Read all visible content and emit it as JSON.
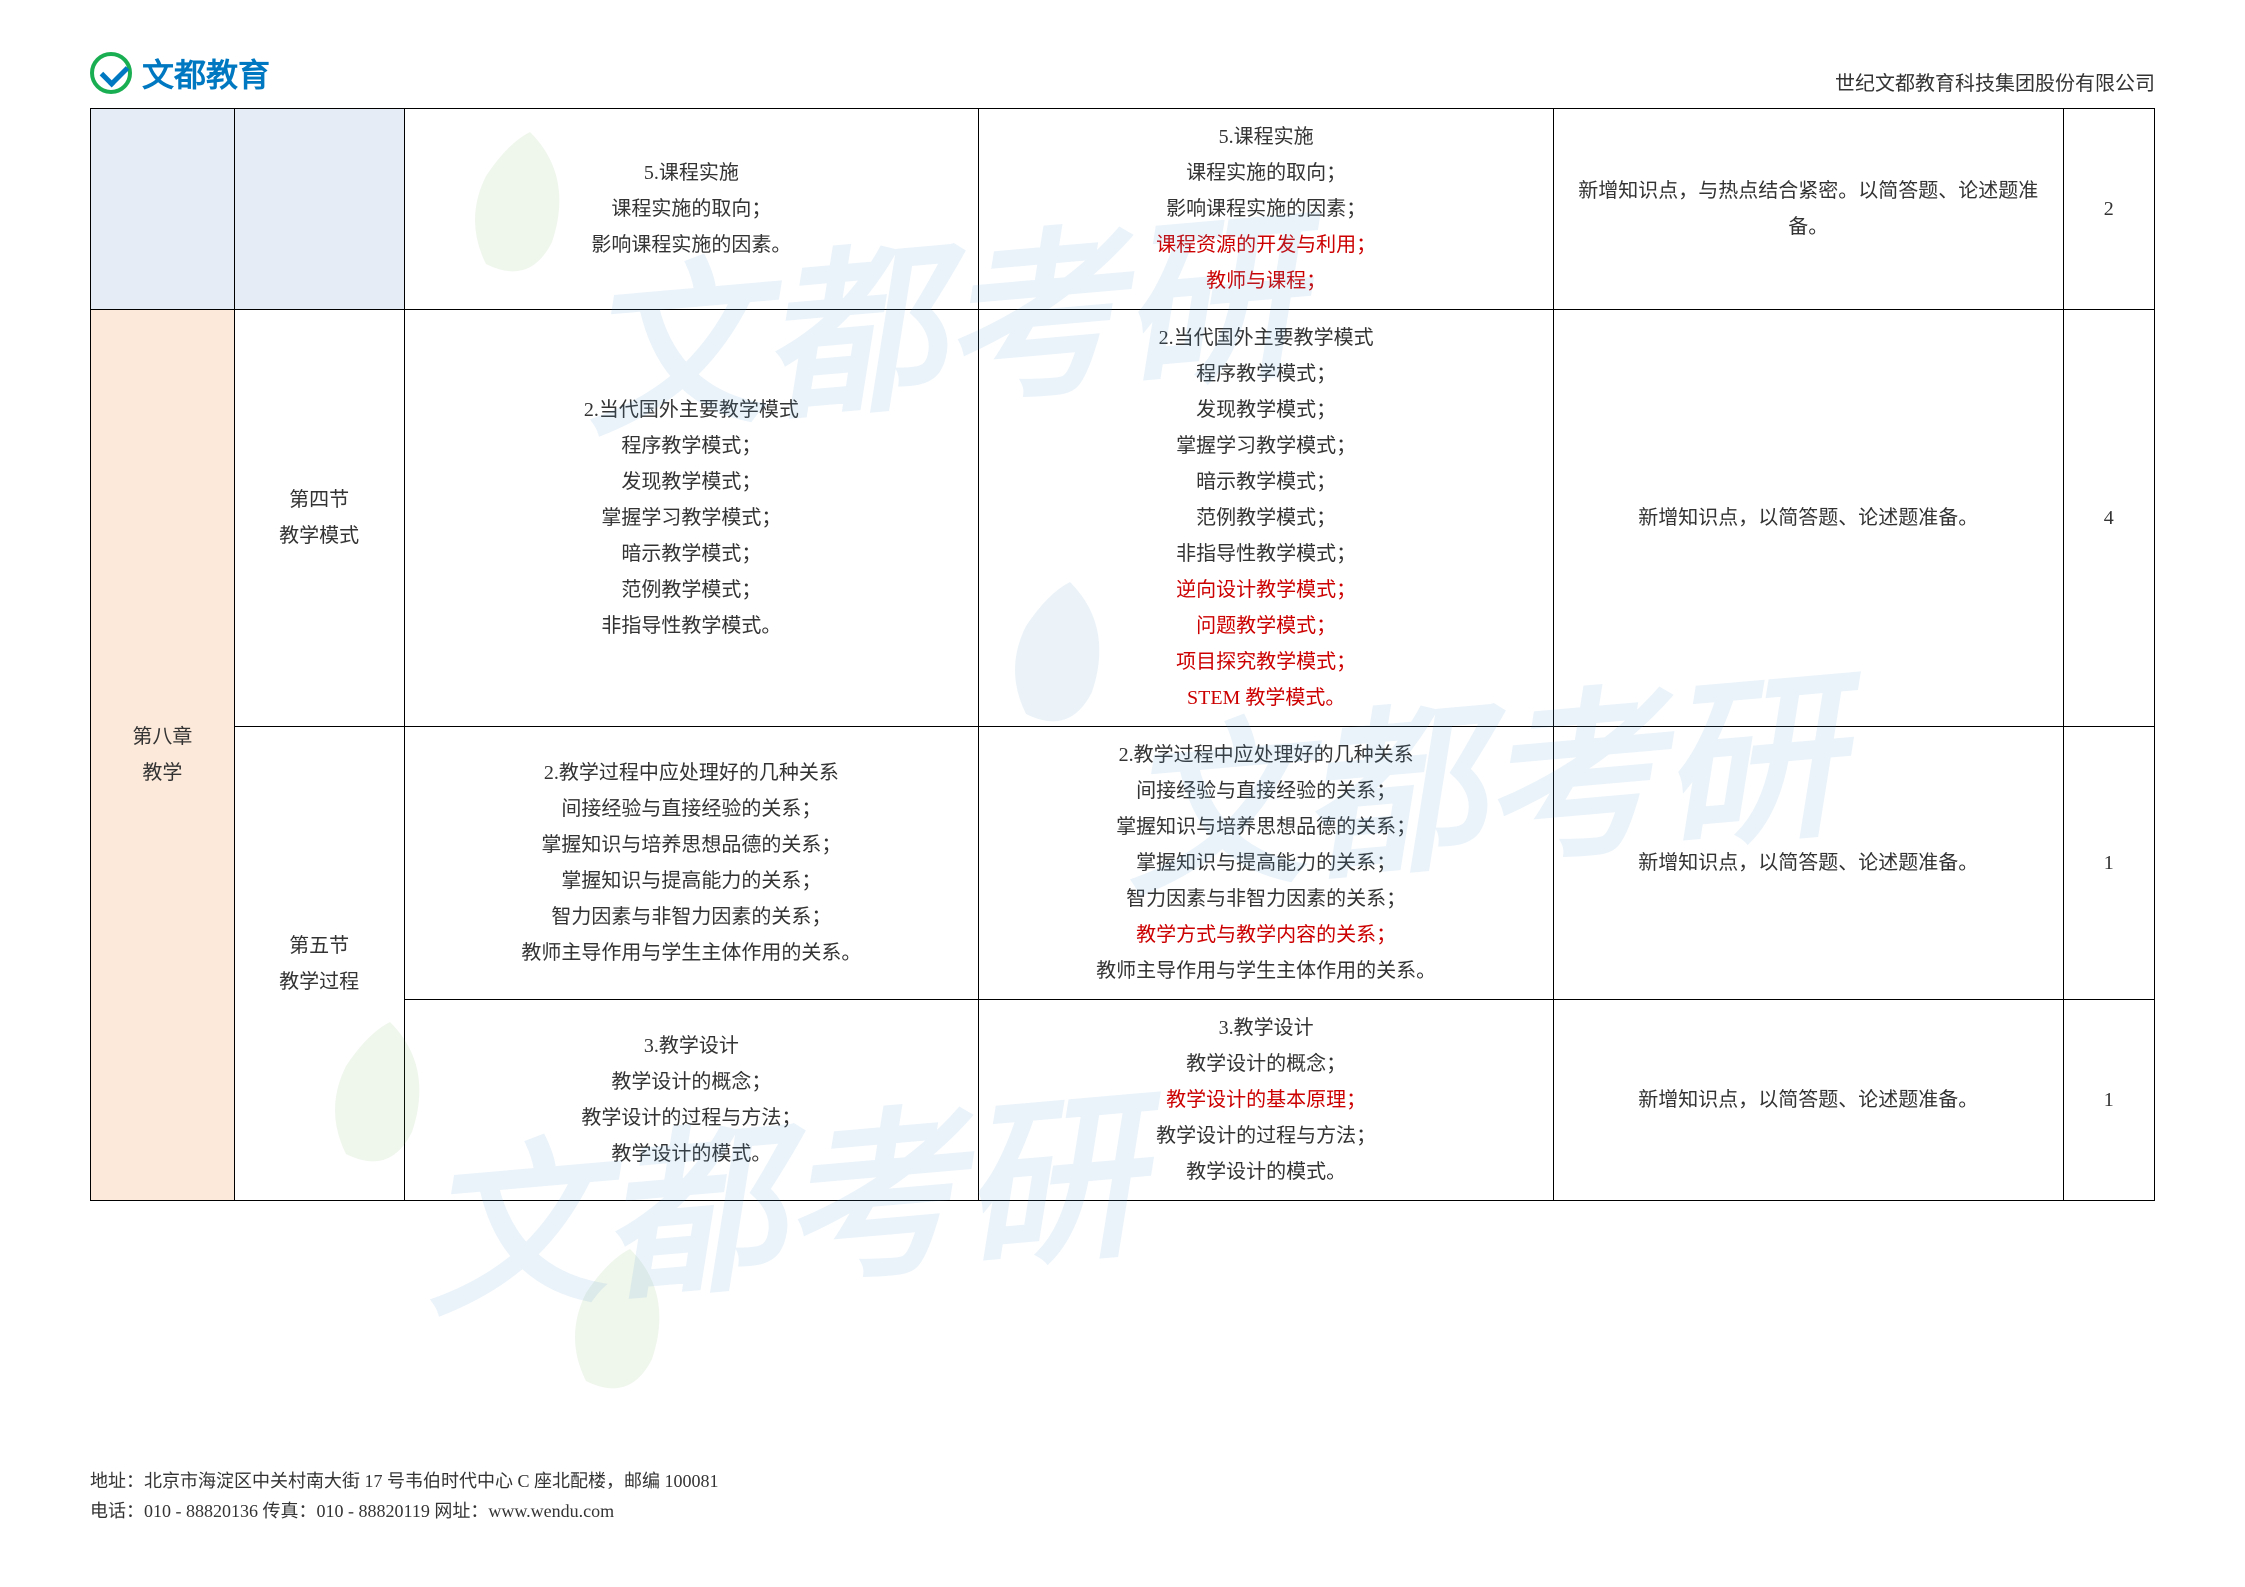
{
  "logo_text": "文都教育",
  "company_name": "世纪文都教育科技集团股份有限公司",
  "watermark_text": "文都考研",
  "chapter": "第八章\n教学",
  "rows": [
    {
      "section": "",
      "col3": [
        {
          "t": "5.课程实施",
          "c": "black"
        },
        {
          "t": "课程实施的取向；",
          "c": "black"
        },
        {
          "t": "影响课程实施的因素。",
          "c": "black"
        }
      ],
      "col4": [
        {
          "t": "5.课程实施",
          "c": "black"
        },
        {
          "t": "课程实施的取向；",
          "c": "black"
        },
        {
          "t": "影响课程实施的因素；",
          "c": "black"
        },
        {
          "t": "课程资源的开发与利用；",
          "c": "red"
        },
        {
          "t": "教师与课程；",
          "c": "red"
        }
      ],
      "col5": "新增知识点，与热点结合紧密。以简答题、论述题准备。",
      "col6": "2"
    },
    {
      "section": "第四节\n教学模式",
      "col3": [
        {
          "t": "2.当代国外主要教学模式",
          "c": "black"
        },
        {
          "t": "程序教学模式；",
          "c": "black"
        },
        {
          "t": "发现教学模式；",
          "c": "black"
        },
        {
          "t": "掌握学习教学模式；",
          "c": "black"
        },
        {
          "t": "暗示教学模式；",
          "c": "black"
        },
        {
          "t": "范例教学模式；",
          "c": "black"
        },
        {
          "t": "非指导性教学模式。",
          "c": "black"
        }
      ],
      "col4": [
        {
          "t": "2.当代国外主要教学模式",
          "c": "black"
        },
        {
          "t": "程序教学模式；",
          "c": "black"
        },
        {
          "t": "发现教学模式；",
          "c": "black"
        },
        {
          "t": "掌握学习教学模式；",
          "c": "black"
        },
        {
          "t": "暗示教学模式；",
          "c": "black"
        },
        {
          "t": "范例教学模式；",
          "c": "black"
        },
        {
          "t": "非指导性教学模式；",
          "c": "black"
        },
        {
          "t": "逆向设计教学模式；",
          "c": "red"
        },
        {
          "t": "问题教学模式；",
          "c": "red"
        },
        {
          "t": "项目探究教学模式；",
          "c": "red"
        },
        {
          "t": "STEM 教学模式。",
          "c": "red"
        }
      ],
      "col5": "新增知识点，以简答题、论述题准备。",
      "col6": "4"
    },
    {
      "section": "第五节\n教学过程",
      "col3": [
        {
          "t": "2.教学过程中应处理好的几种关系",
          "c": "black"
        },
        {
          "t": "间接经验与直接经验的关系；",
          "c": "black"
        },
        {
          "t": "掌握知识与培养思想品德的关系；",
          "c": "black"
        },
        {
          "t": "掌握知识与提高能力的关系；",
          "c": "black"
        },
        {
          "t": "智力因素与非智力因素的关系；",
          "c": "black"
        },
        {
          "t": "教师主导作用与学生主体作用的关系。",
          "c": "black"
        }
      ],
      "col4": [
        {
          "t": "2.教学过程中应处理好的几种关系",
          "c": "black"
        },
        {
          "t": "间接经验与直接经验的关系；",
          "c": "black"
        },
        {
          "t": "掌握知识与培养思想品德的关系；",
          "c": "black"
        },
        {
          "t": "掌握知识与提高能力的关系；",
          "c": "black"
        },
        {
          "t": "智力因素与非智力因素的关系；",
          "c": "black"
        },
        {
          "t": "教学方式与教学内容的关系；",
          "c": "red"
        },
        {
          "t": "教师主导作用与学生主体作用的关系。",
          "c": "black"
        }
      ],
      "col5": "新增知识点，以简答题、论述题准备。",
      "col6": "1"
    },
    {
      "section": "",
      "col3": [
        {
          "t": "3.教学设计",
          "c": "black"
        },
        {
          "t": "教学设计的概念；",
          "c": "black"
        },
        {
          "t": "教学设计的过程与方法；",
          "c": "black"
        },
        {
          "t": "教学设计的模式。",
          "c": "black"
        }
      ],
      "col4": [
        {
          "t": "3.教学设计",
          "c": "black"
        },
        {
          "t": "教学设计的概念；",
          "c": "black"
        },
        {
          "t": "教学设计的基本原理；",
          "c": "red"
        },
        {
          "t": "教学设计的过程与方法；",
          "c": "black"
        },
        {
          "t": "教学设计的模式。",
          "c": "black"
        }
      ],
      "col5": "新增知识点，以简答题、论述题准备。",
      "col6": "1"
    }
  ],
  "footer": {
    "line1": "地址：北京市海淀区中关村南大街 17 号韦伯时代中心 C 座北配楼，邮编 100081",
    "line2": "电话：010 - 88820136 传真：010 - 88820119 网址：www.wendu.com"
  }
}
